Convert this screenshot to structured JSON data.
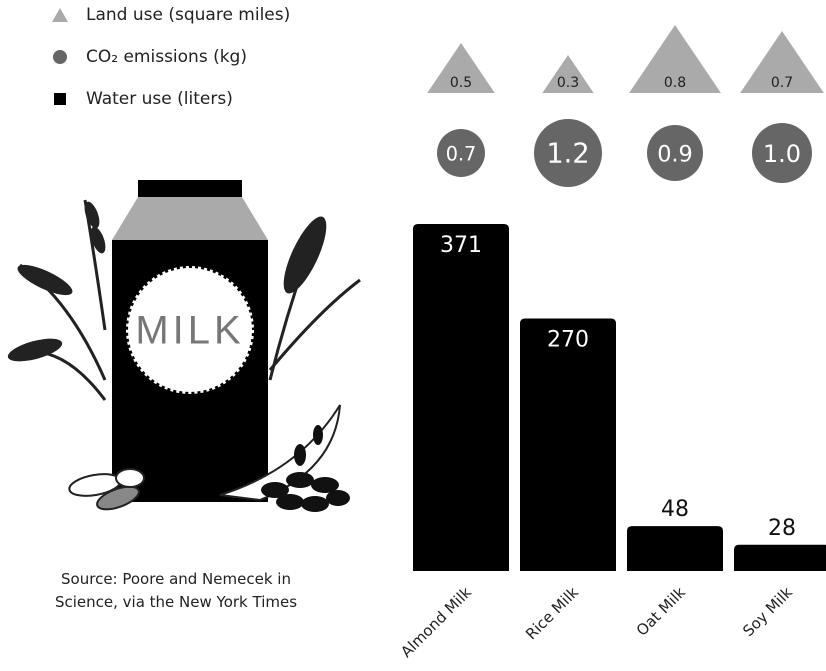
{
  "chart_data": {
    "type": "bar",
    "categories": [
      "Almond Milk",
      "Rice Milk",
      "Oat Milk",
      "Soy Milk"
    ],
    "series": [
      {
        "name": "Land use (square miles)",
        "color": "#aaaaaa",
        "mark": "triangle",
        "values": [
          0.5,
          0.3,
          0.8,
          0.7
        ]
      },
      {
        "name": "CO₂ emissions (kg)",
        "color": "#666666",
        "mark": "circle",
        "values": [
          0.7,
          1.2,
          0.9,
          1.0
        ],
        "value_labels": [
          "0.7",
          "1.2",
          "0.9",
          "1.0"
        ]
      },
      {
        "name": "Water use (liters)",
        "color": "#000000",
        "mark": "bar",
        "values": [
          371,
          270,
          48,
          28
        ]
      }
    ],
    "illustration_label": "MILK",
    "source": "Source: Poore and Nemecek in Science, via the New York Times"
  }
}
